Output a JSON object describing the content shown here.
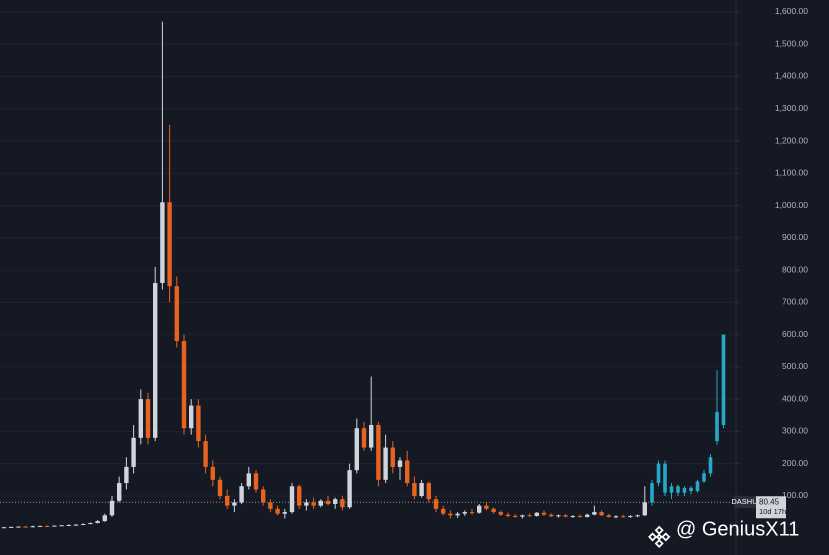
{
  "chart_data": {
    "type": "candlestick",
    "ylim": [
      -83,
      1637
    ],
    "yticks": [
      {
        "value": 100,
        "label": "100.00"
      },
      {
        "value": 200,
        "label": "200.00"
      },
      {
        "value": 300,
        "label": "300.00"
      },
      {
        "value": 400,
        "label": "400.00"
      },
      {
        "value": 500,
        "label": "500.00"
      },
      {
        "value": 600,
        "label": "600.00"
      },
      {
        "value": 700,
        "label": "700.00"
      },
      {
        "value": 800,
        "label": "800.00"
      },
      {
        "value": 900,
        "label": "900.00"
      },
      {
        "value": 1000,
        "label": "1,000.00"
      },
      {
        "value": 1100,
        "label": "1,100.00"
      },
      {
        "value": 1200,
        "label": "1,200.00"
      },
      {
        "value": 1300,
        "label": "1,300.00"
      },
      {
        "value": 1400,
        "label": "1,400.00"
      },
      {
        "value": 1500,
        "label": "1,500.00"
      },
      {
        "value": 1600,
        "label": "1,600.00"
      }
    ],
    "grid": true,
    "up_color": "#d1d4dc",
    "down_color": "#e8641e",
    "open": [
      2,
      3,
      4,
      5,
      4,
      6,
      7,
      6,
      8,
      9,
      10,
      11,
      13,
      16,
      22,
      40,
      85,
      140,
      190,
      280,
      400,
      280,
      760,
      1010,
      750,
      580,
      310,
      380,
      270,
      190,
      150,
      100,
      70,
      80,
      130,
      170,
      120,
      80,
      60,
      45,
      50,
      130,
      70,
      80,
      70,
      85,
      75,
      90,
      65,
      180,
      310,
      250,
      320,
      150,
      250,
      190,
      210,
      140,
      100,
      140,
      90,
      60,
      45,
      40,
      45,
      50,
      48,
      70,
      60,
      50,
      42,
      38,
      36,
      40,
      38,
      48,
      42,
      37,
      40,
      36,
      38,
      35,
      42,
      50,
      40,
      35,
      37,
      36,
      38,
      40
    ],
    "high": [
      4,
      5,
      6,
      7,
      8,
      8,
      9,
      9,
      10,
      12,
      13,
      15,
      18,
      25,
      45,
      100,
      160,
      220,
      320,
      430,
      420,
      810,
      1570,
      1250,
      780,
      600,
      400,
      400,
      290,
      210,
      160,
      120,
      90,
      140,
      190,
      180,
      130,
      90,
      70,
      60,
      140,
      135,
      90,
      95,
      90,
      100,
      95,
      100,
      200,
      340,
      330,
      470,
      330,
      290,
      270,
      220,
      240,
      160,
      150,
      145,
      100,
      70,
      55,
      50,
      55,
      60,
      75,
      80,
      65,
      55,
      48,
      44,
      42,
      46,
      50,
      55,
      46,
      42,
      44,
      40,
      42,
      45,
      70,
      55,
      44,
      40,
      42,
      40,
      42,
      130
    ],
    "low": [
      1,
      2,
      3,
      4,
      3,
      5,
      6,
      5,
      7,
      8,
      9,
      10,
      12,
      15,
      20,
      35,
      80,
      120,
      170,
      260,
      260,
      270,
      740,
      700,
      560,
      290,
      290,
      250,
      170,
      130,
      90,
      60,
      50,
      75,
      120,
      110,
      70,
      50,
      40,
      30,
      45,
      60,
      55,
      60,
      65,
      70,
      60,
      55,
      60,
      170,
      240,
      240,
      130,
      140,
      170,
      150,
      130,
      90,
      95,
      80,
      50,
      40,
      30,
      32,
      38,
      42,
      45,
      55,
      45,
      38,
      34,
      32,
      30,
      35,
      36,
      38,
      35,
      33,
      34,
      32,
      33,
      33,
      40,
      38,
      33,
      31,
      33,
      32,
      34,
      38
    ],
    "close": [
      3,
      4,
      5,
      4,
      6,
      7,
      6,
      8,
      9,
      10,
      11,
      13,
      16,
      22,
      40,
      85,
      140,
      190,
      280,
      400,
      280,
      760,
      1010,
      750,
      580,
      310,
      380,
      270,
      190,
      150,
      100,
      70,
      80,
      130,
      170,
      120,
      80,
      60,
      45,
      50,
      130,
      70,
      80,
      70,
      85,
      75,
      90,
      65,
      180,
      310,
      250,
      320,
      150,
      250,
      190,
      210,
      140,
      100,
      140,
      90,
      60,
      45,
      40,
      45,
      50,
      48,
      70,
      60,
      50,
      42,
      38,
      36,
      40,
      38,
      48,
      42,
      37,
      40,
      36,
      38,
      35,
      42,
      50,
      40,
      35,
      37,
      36,
      38,
      40,
      80
    ],
    "projection": {
      "color": "#26a9c9",
      "open": [
        80,
        140,
        200,
        110,
        130,
        110,
        125,
        115,
        145,
        170,
        270,
        320
      ],
      "high": [
        150,
        210,
        210,
        140,
        135,
        130,
        130,
        150,
        180,
        230,
        490,
        600
      ],
      "low": [
        70,
        130,
        100,
        90,
        100,
        100,
        105,
        110,
        140,
        160,
        260,
        310
      ],
      "close": [
        140,
        200,
        110,
        130,
        110,
        125,
        115,
        145,
        170,
        220,
        360,
        600
      ]
    },
    "symbol": "DASHUSDT",
    "last_price": 80.45,
    "countdown": "10d 17h",
    "watermark": "@ GeniusX11"
  }
}
